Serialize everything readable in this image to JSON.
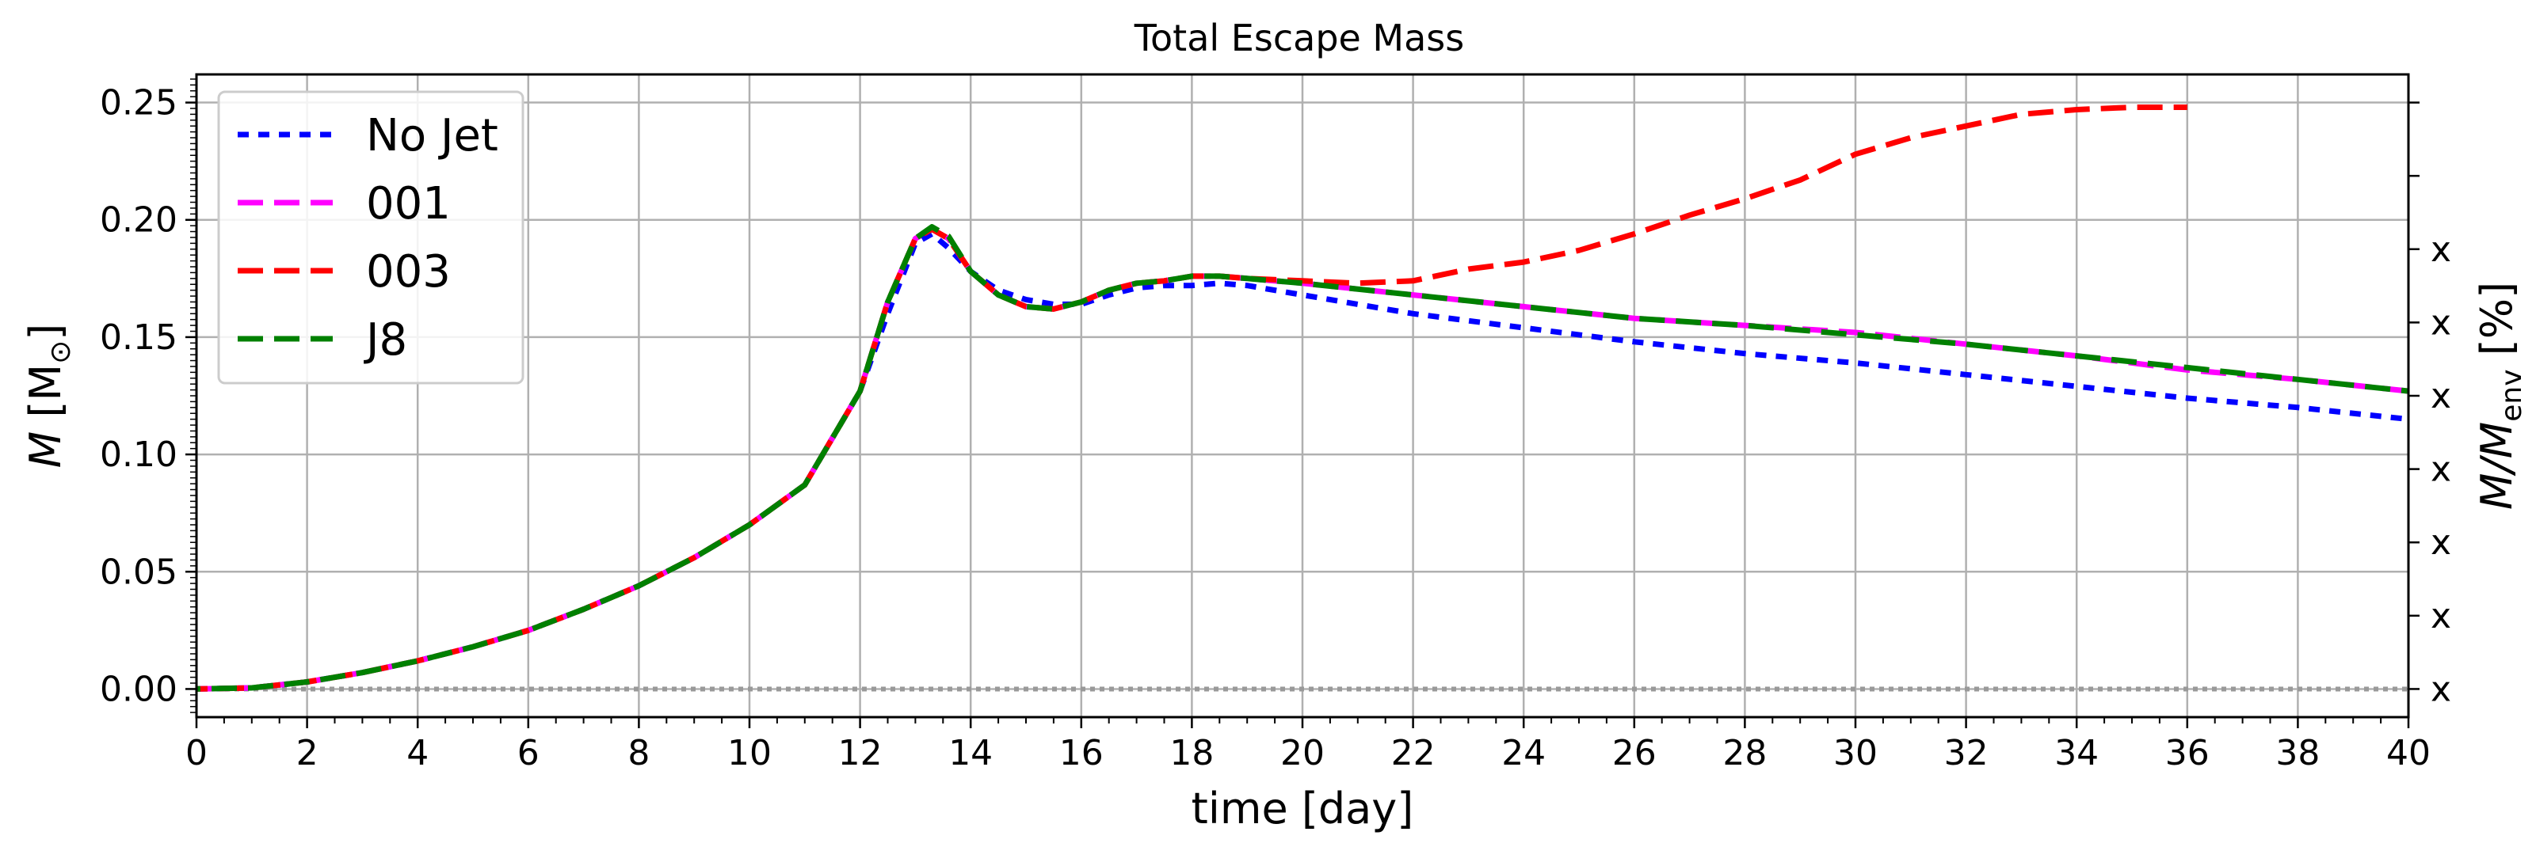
{
  "chart_data": {
    "type": "line",
    "title": "Total Escape Mass",
    "xlabel": "time [day]",
    "ylabel": {
      "var": "M",
      "unit": "M",
      "unit_sub": "⊙"
    },
    "ylabel_right": {
      "var": "M/M",
      "sub": "env",
      "unit": "[%]"
    },
    "xlim": [
      0,
      40
    ],
    "ylim": [
      -0.012,
      0.262
    ],
    "x_ticks": [
      "0",
      "2",
      "4",
      "6",
      "8",
      "10",
      "12",
      "14",
      "16",
      "18",
      "20",
      "22",
      "24",
      "26",
      "28",
      "30",
      "32",
      "34",
      "36",
      "38",
      "40"
    ],
    "y_ticks": [
      "0.00",
      "0.05",
      "0.10",
      "0.15",
      "0.20",
      "0.25"
    ],
    "right_tick_labels": [
      "x",
      "x",
      "x",
      "x",
      "x",
      "x",
      "x"
    ],
    "grid": true,
    "legend_position": "upper-left",
    "series": [
      {
        "name": "No Jet",
        "color": "#0000ff",
        "dash": "short",
        "x": [
          0,
          1,
          2,
          3,
          4,
          5,
          6,
          7,
          8,
          9,
          10,
          11,
          12,
          12.5,
          13,
          13.3,
          13.6,
          14,
          14.5,
          15,
          15.5,
          16,
          16.5,
          17,
          17.5,
          18,
          18.5,
          19,
          20,
          22,
          24,
          26,
          28,
          30,
          32,
          34,
          36,
          38,
          40
        ],
        "y": [
          0,
          0.0005,
          0.003,
          0.007,
          0.012,
          0.018,
          0.025,
          0.034,
          0.044,
          0.056,
          0.07,
          0.087,
          0.127,
          0.16,
          0.19,
          0.194,
          0.188,
          0.178,
          0.17,
          0.166,
          0.164,
          0.164,
          0.168,
          0.171,
          0.172,
          0.172,
          0.173,
          0.172,
          0.168,
          0.16,
          0.154,
          0.148,
          0.143,
          0.139,
          0.134,
          0.129,
          0.124,
          0.12,
          0.115
        ]
      },
      {
        "name": "001",
        "color": "#ff00ff",
        "dash": "long",
        "x": [
          0,
          1,
          2,
          3,
          4,
          5,
          6,
          7,
          8,
          9,
          10,
          11,
          12,
          12.5,
          13,
          13.3,
          13.6,
          14,
          14.5,
          15,
          15.5,
          16,
          16.5,
          17,
          17.5,
          18,
          18.5,
          19,
          20,
          22,
          24,
          26,
          28,
          30,
          32,
          34,
          36,
          38,
          40
        ],
        "y": [
          0,
          0.0005,
          0.003,
          0.007,
          0.012,
          0.018,
          0.025,
          0.034,
          0.044,
          0.056,
          0.07,
          0.087,
          0.127,
          0.165,
          0.192,
          0.196,
          0.192,
          0.178,
          0.168,
          0.163,
          0.162,
          0.165,
          0.17,
          0.173,
          0.174,
          0.176,
          0.176,
          0.175,
          0.173,
          0.168,
          0.163,
          0.158,
          0.155,
          0.152,
          0.147,
          0.142,
          0.136,
          0.132,
          0.127
        ]
      },
      {
        "name": "003",
        "color": "#ff0000",
        "dash": "long",
        "x": [
          0,
          1,
          2,
          3,
          4,
          5,
          6,
          7,
          8,
          9,
          10,
          11,
          12,
          12.5,
          13,
          13.3,
          13.6,
          14,
          14.5,
          15,
          15.5,
          16,
          16.5,
          17,
          17.5,
          18,
          18.5,
          19,
          20,
          21,
          22,
          23,
          24,
          25,
          26,
          27,
          28,
          29,
          30,
          31,
          32,
          33,
          34,
          35,
          36
        ],
        "y": [
          0,
          0.0005,
          0.003,
          0.007,
          0.012,
          0.018,
          0.025,
          0.034,
          0.044,
          0.056,
          0.07,
          0.087,
          0.127,
          0.165,
          0.192,
          0.196,
          0.192,
          0.178,
          0.168,
          0.163,
          0.162,
          0.165,
          0.17,
          0.173,
          0.174,
          0.176,
          0.176,
          0.175,
          0.174,
          0.173,
          0.174,
          0.179,
          0.182,
          0.187,
          0.194,
          0.202,
          0.209,
          0.217,
          0.228,
          0.235,
          0.24,
          0.245,
          0.247,
          0.248,
          0.248
        ]
      },
      {
        "name": "J8",
        "color": "#008000",
        "dash": "long",
        "x": [
          0,
          1,
          2,
          3,
          4,
          5,
          6,
          7,
          8,
          9,
          10,
          11,
          12,
          12.5,
          13,
          13.3,
          13.6,
          14,
          14.5,
          15,
          15.5,
          16,
          16.5,
          17,
          17.5,
          18,
          18.5,
          19,
          20,
          22,
          24,
          26,
          28,
          30,
          32,
          34,
          36,
          38,
          40
        ],
        "y": [
          0,
          0.0005,
          0.003,
          0.007,
          0.012,
          0.018,
          0.025,
          0.034,
          0.044,
          0.056,
          0.07,
          0.087,
          0.127,
          0.165,
          0.192,
          0.197,
          0.193,
          0.178,
          0.168,
          0.163,
          0.162,
          0.165,
          0.17,
          0.173,
          0.174,
          0.176,
          0.176,
          0.175,
          0.173,
          0.168,
          0.163,
          0.158,
          0.155,
          0.151,
          0.147,
          0.142,
          0.137,
          0.132,
          0.127
        ]
      }
    ]
  }
}
